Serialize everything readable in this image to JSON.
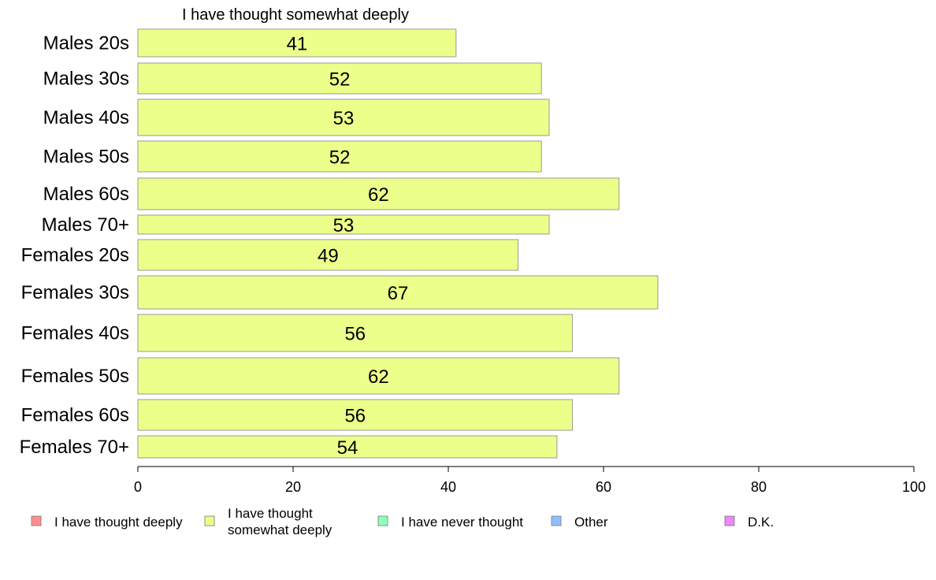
{
  "chart_data": {
    "type": "bar",
    "orientation": "horizontal",
    "title": "I have thought somewhat deeply",
    "xlabel": "",
    "ylabel": "",
    "xlim": [
      0,
      100
    ],
    "xticks": [
      "0",
      "20",
      "40",
      "60",
      "80",
      "100"
    ],
    "grid": false,
    "categories": [
      "Males 20s",
      "Males 30s",
      "Males 40s",
      "Males 50s",
      "Males 60s",
      "Males 70+",
      "Females 20s",
      "Females 30s",
      "Females 40s",
      "Females 50s",
      "Females 60s",
      "Females 70+"
    ],
    "series": [
      {
        "name": "I have thought somewhat deeply",
        "color": "#ecff8a",
        "values": [
          41,
          52,
          53,
          52,
          62,
          53,
          49,
          67,
          56,
          62,
          56,
          54
        ]
      }
    ],
    "data_labels": [
      "41",
      "52",
      "53",
      "52",
      "62",
      "53",
      "49",
      "67",
      "56",
      "62",
      "56",
      "54"
    ],
    "legend": {
      "placement": "bottom",
      "items": [
        {
          "lines": [
            "I have thought deeply"
          ],
          "color": "#ff8f8f"
        },
        {
          "lines": [
            "I have thought",
            "somewhat deeply"
          ],
          "color": "#ecff8a"
        },
        {
          "lines": [
            "I have never thought"
          ],
          "color": "#8fffbf"
        },
        {
          "lines": [
            "Other"
          ],
          "color": "#8fbfff"
        },
        {
          "lines": [
            "D.K."
          ],
          "color": "#ee88ff"
        }
      ]
    }
  }
}
